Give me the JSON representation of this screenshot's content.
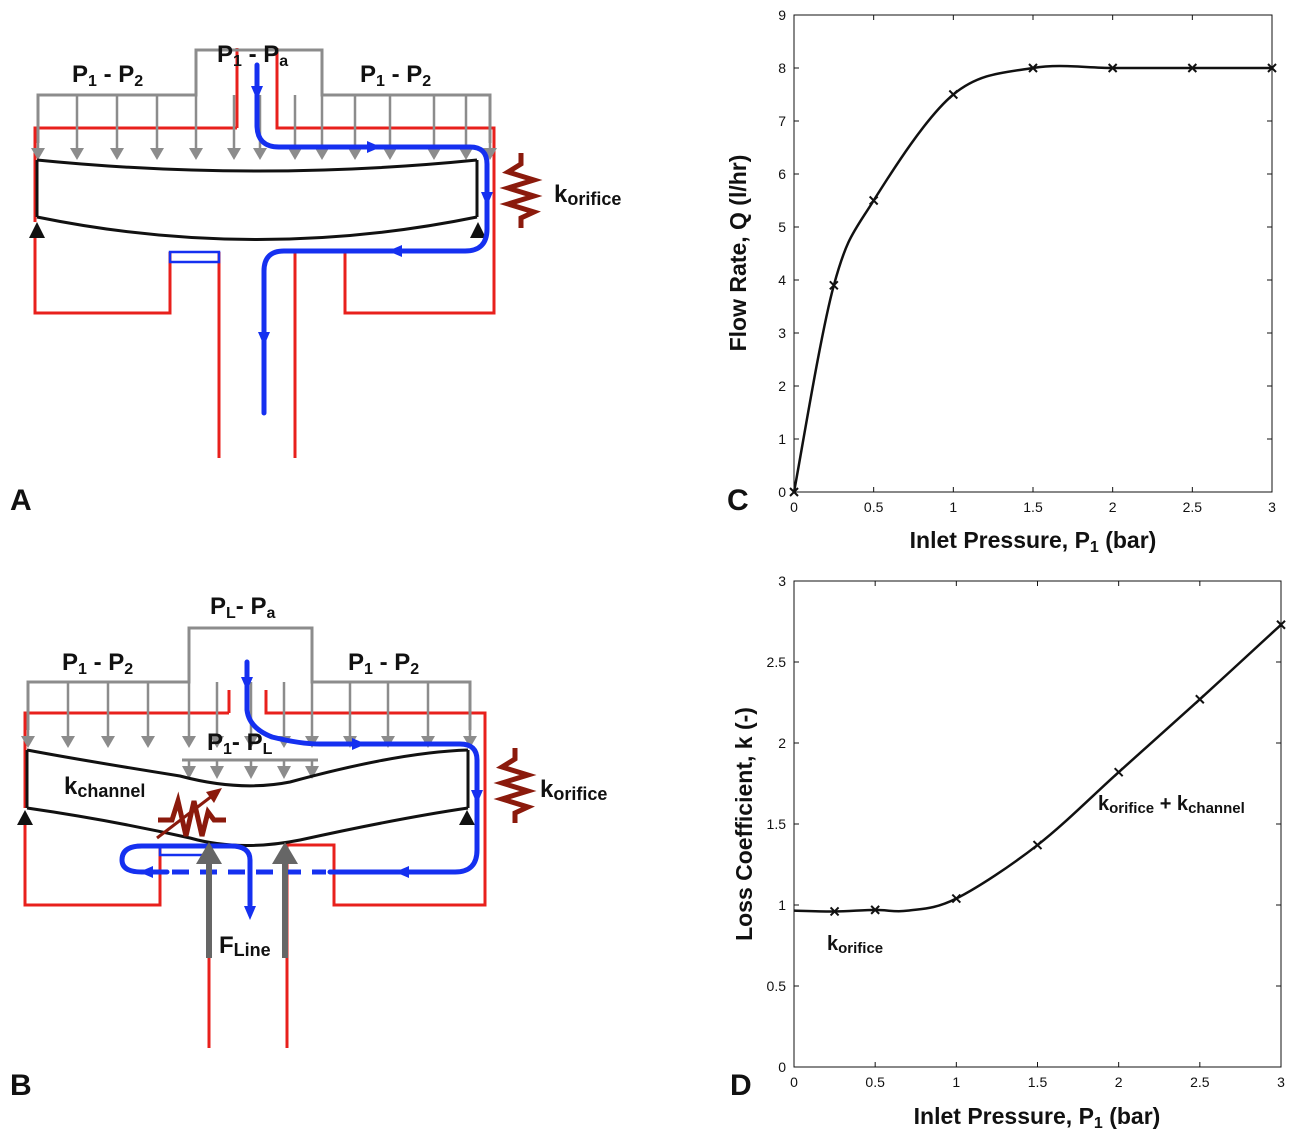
{
  "panels": {
    "A": {
      "letter": "A",
      "p12_left": {
        "main": "P",
        "s1": "1",
        "mid": " - P",
        "s2": "2"
      },
      "p12_right": {
        "main": "P",
        "s1": "1",
        "mid": " - P",
        "s2": "2"
      },
      "p1a": {
        "main": "P",
        "s1": "1",
        "mid": " - P",
        "s2": "a"
      },
      "k_orifice": {
        "main": "k",
        "sub": "orifice"
      }
    },
    "B": {
      "letter": "B",
      "p12_left": {
        "main": "P",
        "s1": "1",
        "mid": " - P",
        "s2": "2"
      },
      "p12_right": {
        "main": "P",
        "s1": "1",
        "mid": " - P",
        "s2": "2"
      },
      "pla": {
        "main": "P",
        "s1": "L",
        "mid": "- P",
        "s2": "a"
      },
      "p1l": {
        "main": "P",
        "s1": "1",
        "mid": "- P",
        "s2": "L"
      },
      "k_channel": {
        "main": "k",
        "sub": "channel"
      },
      "k_orifice": {
        "main": "k",
        "sub": "orifice"
      },
      "f_line": {
        "main": "F",
        "sub": "Line"
      }
    },
    "C": {
      "letter": "C"
    },
    "D": {
      "letter": "D"
    }
  },
  "colors": {
    "frame": "#e8201c",
    "flow": "#1530f0",
    "load": "#8c8c8c",
    "spring": "#8b1a0c",
    "membrane": "#111111",
    "force": "#666666"
  },
  "chart_data": [
    {
      "id": "C",
      "type": "line",
      "x": [
        0,
        0.25,
        0.5,
        1,
        1.5,
        2,
        2.5,
        3
      ],
      "y": [
        0,
        3.9,
        5.5,
        7.5,
        8,
        8,
        8,
        8
      ],
      "xlabel": {
        "main": "Inlet Pressure, P",
        "sub": "1",
        "tail": " (bar)"
      },
      "ylabel": "Flow Rate, Q (l/hr)",
      "xlim": [
        0,
        3
      ],
      "ylim": [
        0,
        9
      ],
      "xticks": [
        "0",
        "0.5",
        "1",
        "1.5",
        "2",
        "2.5",
        "3"
      ],
      "yticks": [
        "0",
        "1",
        "2",
        "3",
        "4",
        "5",
        "6",
        "7",
        "8",
        "9"
      ],
      "marker": "x",
      "grid": false
    },
    {
      "id": "D",
      "type": "line",
      "x": [
        0.25,
        0.5,
        1,
        1.5,
        2,
        2.5,
        3
      ],
      "y": [
        0.96,
        0.97,
        1.04,
        1.37,
        1.82,
        2.27,
        2.73
      ],
      "xlabel": {
        "main": "Inlet Pressure, P",
        "sub": "1",
        "tail": " (bar)"
      },
      "ylabel": "Loss Coefficient, k (-)",
      "xlim": [
        0,
        3
      ],
      "ylim": [
        0,
        3
      ],
      "xticks": [
        "0",
        "0.5",
        "1",
        "1.5",
        "2",
        "2.5",
        "3"
      ],
      "yticks": [
        "0",
        "0.5",
        "1",
        "1.5",
        "2",
        "2.5",
        "3"
      ],
      "marker": "x",
      "grid": false,
      "annotations": [
        {
          "main": "k",
          "sub": "orifice",
          "x": 0.2,
          "y": 0.72
        },
        {
          "main": "k",
          "sub": "orifice",
          "mid": " + k",
          "sub2": "channel",
          "x": 1.88,
          "y": 1.52
        }
      ]
    }
  ]
}
